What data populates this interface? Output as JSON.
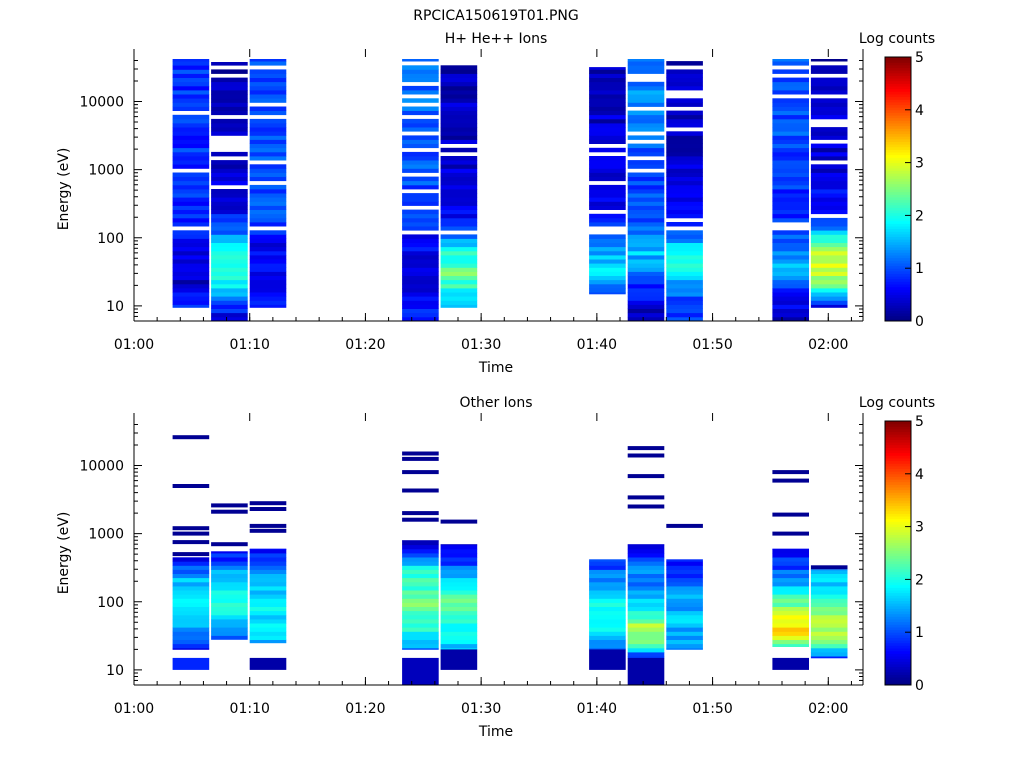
{
  "figure_title": "RPCICA150619T01.PNG",
  "colors": {
    "axis": "#000000",
    "background": "#ffffff"
  },
  "colormap": [
    "#00007f",
    "#0000ff",
    "#007fff",
    "#00ffff",
    "#7fff7f",
    "#ffff00",
    "#ff7f00",
    "#ff0000",
    "#7f0000"
  ],
  "chart_data": [
    {
      "type": "heatmap",
      "title": "H+ He++ Ions",
      "xlabel": "Time",
      "ylabel": "Energy (eV)",
      "yscale": "log",
      "ylim": [
        6,
        45000
      ],
      "xlim": [
        "01:00",
        "02:03"
      ],
      "xticks": [
        "01:00",
        "01:10",
        "01:20",
        "01:30",
        "01:40",
        "01:50",
        "02:00"
      ],
      "yticks": [
        10,
        100,
        1000,
        10000
      ],
      "yticklabels": [
        "10",
        "100",
        "1000",
        "10000"
      ],
      "colorbar": {
        "label": "Log counts",
        "range": [
          0,
          5
        ],
        "ticks": [
          "0",
          "1",
          "2",
          "3",
          "4",
          "5"
        ]
      },
      "time_columns": [
        {
          "start": "01:03:20",
          "end": "01:06:30",
          "emin": 9.5,
          "emax": 42000,
          "profile": [
            [
              9.5,
              0.9
            ],
            [
              20,
              0.3
            ],
            [
              60,
              0.5
            ],
            [
              100,
              0.7
            ],
            [
              1000,
              0.85
            ],
            [
              10000,
              0.9
            ],
            [
              42000,
              0.8
            ]
          ]
        },
        {
          "start": "01:06:40",
          "end": "01:09:50",
          "emin": 5.5,
          "emax": 38000,
          "profile": [
            [
              5.5,
              0.2
            ],
            [
              20,
              1.8
            ],
            [
              40,
              2.2
            ],
            [
              80,
              1.6
            ],
            [
              300,
              0.4
            ],
            [
              38000,
              0.3
            ]
          ]
        },
        {
          "start": "01:10:00",
          "end": "01:13:10",
          "emin": 9.5,
          "emax": 42000,
          "profile": [
            [
              9.5,
              0.8
            ],
            [
              20,
              0.5
            ],
            [
              80,
              0.6
            ],
            [
              300,
              1.0
            ],
            [
              42000,
              1.0
            ]
          ]
        },
        {
          "start": "01:23:10",
          "end": "01:26:20",
          "emin": 5.5,
          "emax": 42000,
          "profile": [
            [
              5.5,
              0.9
            ],
            [
              20,
              0.3
            ],
            [
              60,
              0.6
            ],
            [
              300,
              0.9
            ],
            [
              3000,
              1.1
            ],
            [
              42000,
              1.2
            ]
          ]
        },
        {
          "start": "01:26:30",
          "end": "01:29:40",
          "emin": 9.5,
          "emax": 35000,
          "profile": [
            [
              9.5,
              1.6
            ],
            [
              30,
              2.4
            ],
            [
              60,
              2.0
            ],
            [
              100,
              1.2
            ],
            [
              300,
              0.4
            ],
            [
              35000,
              0.3
            ]
          ]
        },
        {
          "start": "01:39:20",
          "end": "01:42:30",
          "emin": 15,
          "emax": 32000,
          "profile": [
            [
              15,
              1.0
            ],
            [
              30,
              1.8
            ],
            [
              80,
              1.4
            ],
            [
              200,
              0.5
            ],
            [
              2000,
              0.4
            ],
            [
              32000,
              0.3
            ]
          ]
        },
        {
          "start": "01:42:40",
          "end": "01:45:50",
          "emin": 5.5,
          "emax": 42000,
          "profile": [
            [
              5.5,
              0.2
            ],
            [
              20,
              0.8
            ],
            [
              60,
              1.6
            ],
            [
              150,
              1.0
            ],
            [
              1000,
              0.9
            ],
            [
              10000,
              1.3
            ],
            [
              42000,
              1.2
            ]
          ]
        },
        {
          "start": "01:46:00",
          "end": "01:49:10",
          "emin": 5.5,
          "emax": 42000,
          "profile": [
            [
              5.5,
              0.8
            ],
            [
              20,
              1.2
            ],
            [
              40,
              2.0
            ],
            [
              80,
              1.6
            ],
            [
              150,
              0.9
            ],
            [
              1000,
              0.4
            ],
            [
              42000,
              0.3
            ]
          ]
        },
        {
          "start": "01:55:10",
          "end": "01:58:20",
          "emin": 5.5,
          "emax": 42000,
          "profile": [
            [
              5.5,
              0.3
            ],
            [
              15,
              0.8
            ],
            [
              40,
              1.6
            ],
            [
              60,
              1.3
            ],
            [
              200,
              0.8
            ],
            [
              3000,
              1.0
            ],
            [
              42000,
              1.1
            ]
          ]
        },
        {
          "start": "01:58:30",
          "end": "02:01:40",
          "emin": 9.5,
          "emax": 42000,
          "profile": [
            [
              9.5,
              0.4
            ],
            [
              20,
              2.6
            ],
            [
              50,
              3.0
            ],
            [
              90,
              2.2
            ],
            [
              150,
              0.9
            ],
            [
              1000,
              0.4
            ],
            [
              42000,
              0.3
            ]
          ]
        }
      ]
    },
    {
      "type": "heatmap",
      "title": "Other Ions",
      "xlabel": "Time",
      "ylabel": "Energy (eV)",
      "yscale": "log",
      "ylim": [
        6,
        45000
      ],
      "xlim": [
        "01:00",
        "02:03"
      ],
      "xticks": [
        "01:00",
        "01:10",
        "01:20",
        "01:30",
        "01:40",
        "01:50",
        "02:00"
      ],
      "yticks": [
        10,
        100,
        1000,
        10000
      ],
      "yticklabels": [
        "10",
        "100",
        "1000",
        "10000"
      ],
      "colorbar": {
        "label": "Log counts",
        "range": [
          0,
          5
        ],
        "ticks": [
          "0",
          "1",
          "2",
          "3",
          "4",
          "5"
        ]
      },
      "time_columns": [
        {
          "start": "01:03:20",
          "end": "01:06:30",
          "emin": 20,
          "emax": 450,
          "profile": [
            [
              20,
              0.4
            ],
            [
              30,
              1.2
            ],
            [
              80,
              1.8
            ],
            [
              200,
              1.6
            ],
            [
              450,
              0.5
            ]
          ],
          "lines": [
            26000,
            5000,
            1200,
            1000,
            750,
            500
          ],
          "low_block": [
            10,
            15,
            0.8
          ]
        },
        {
          "start": "01:06:40",
          "end": "01:09:50",
          "emin": 28,
          "emax": 550,
          "profile": [
            [
              28,
              1.0
            ],
            [
              80,
              2.0
            ],
            [
              200,
              1.8
            ],
            [
              550,
              0.6
            ]
          ],
          "lines": [
            2600,
            2100,
            700
          ]
        },
        {
          "start": "01:10:00",
          "end": "01:13:10",
          "emin": 25,
          "emax": 600,
          "profile": [
            [
              25,
              1.6
            ],
            [
              80,
              1.8
            ],
            [
              300,
              1.4
            ],
            [
              600,
              0.5
            ]
          ],
          "lines": [
            2800,
            2300,
            1300,
            1100
          ],
          "low_block": [
            10,
            15,
            0.2
          ]
        },
        {
          "start": "01:23:10",
          "end": "01:26:20",
          "emin": 20,
          "emax": 800,
          "profile": [
            [
              20,
              1.2
            ],
            [
              40,
              2.2
            ],
            [
              100,
              2.4
            ],
            [
              300,
              2.0
            ],
            [
              800,
              0.2
            ]
          ],
          "lines": [
            15000,
            12500,
            8000,
            4300,
            2000,
            1600
          ],
          "low_block": [
            6,
            15,
            0.3
          ]
        },
        {
          "start": "01:26:30",
          "end": "01:29:40",
          "emin": 20,
          "emax": 700,
          "profile": [
            [
              20,
              1.5
            ],
            [
              50,
              2.0
            ],
            [
              120,
              2.4
            ],
            [
              300,
              1.2
            ],
            [
              700,
              0.3
            ]
          ],
          "lines": [
            1500
          ],
          "low_block": [
            10,
            20,
            0.2
          ]
        },
        {
          "start": "01:39:20",
          "end": "01:42:30",
          "emin": 20,
          "emax": 420,
          "profile": [
            [
              20,
              1.3
            ],
            [
              60,
              2.0
            ],
            [
              150,
              1.6
            ],
            [
              420,
              0.8
            ]
          ],
          "low_block": [
            10,
            20,
            0.2
          ]
        },
        {
          "start": "01:42:40",
          "end": "01:45:50",
          "emin": 15,
          "emax": 700,
          "profile": [
            [
              15,
              0.6
            ],
            [
              25,
              2.4
            ],
            [
              40,
              2.8
            ],
            [
              120,
              1.4
            ],
            [
              300,
              1.2
            ],
            [
              700,
              0.6
            ]
          ],
          "lines": [
            18000,
            14000,
            7000,
            3400,
            2500
          ],
          "low_block": [
            6,
            15,
            0.2
          ]
        },
        {
          "start": "01:46:00",
          "end": "01:49:10",
          "emin": 20,
          "emax": 420,
          "profile": [
            [
              20,
              1.4
            ],
            [
              60,
              1.6
            ],
            [
              150,
              1.3
            ],
            [
              420,
              0.6
            ]
          ],
          "lines": [
            1300
          ]
        },
        {
          "start": "01:55:10",
          "end": "01:58:20",
          "emin": 22,
          "emax": 600,
          "profile": [
            [
              22,
              2.2
            ],
            [
              35,
              3.4
            ],
            [
              60,
              3.1
            ],
            [
              100,
              2.3
            ],
            [
              250,
              1.2
            ],
            [
              600,
              0.5
            ]
          ],
          "lines": [
            8000,
            6000,
            1900,
            1000
          ],
          "low_block": [
            10,
            15,
            0.2
          ]
        },
        {
          "start": "01:58:30",
          "end": "02:01:40",
          "emin": 15,
          "emax": 300,
          "profile": [
            [
              15,
              0.9
            ],
            [
              25,
              2.4
            ],
            [
              50,
              2.9
            ],
            [
              100,
              2.1
            ],
            [
              300,
              1.4
            ]
          ],
          "lines": [
            320
          ]
        }
      ]
    }
  ]
}
